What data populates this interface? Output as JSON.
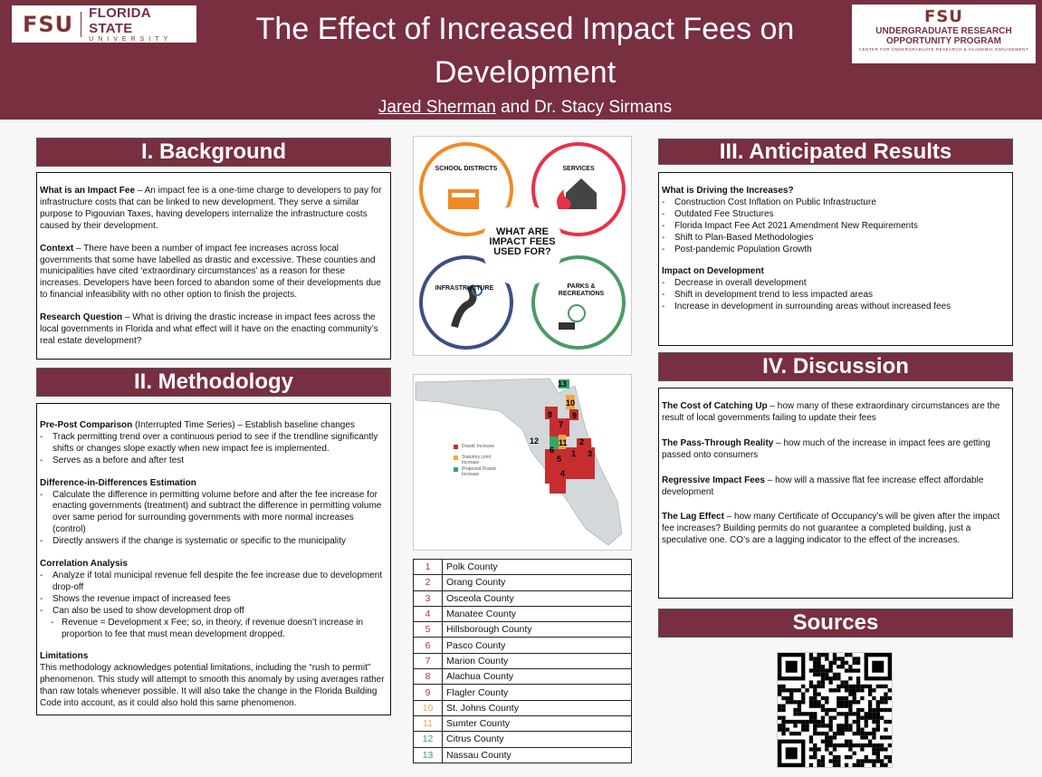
{
  "header": {
    "title": "The Effect of Increased Impact Fees on Development",
    "author1": "Jared Sherman",
    "author_rest": " and Dr. Stacy Sirmans",
    "logo_left": {
      "mark": "FSU",
      "name": "FLORIDA STATE",
      "sub": "UNIVERSITY"
    },
    "logo_right": {
      "mark": "FSU",
      "line1": "UNDERGRADUATE RESEARCH",
      "line2": "OPPORTUNITY PROGRAM",
      "line3": "CENTER FOR UNDERGRADUATE RESEARCH & ACADEMIC ENGAGEMENT"
    }
  },
  "colors": {
    "maroon": "#782f40",
    "drastic": "#c62d2f",
    "statutory": "#f2a543",
    "proposed": "#3aa46a"
  },
  "background": {
    "heading": "I. Background",
    "p1_bold": "What is an Impact Fee",
    "p1": " – An impact fee is a one-time charge to developers to pay for infrastructure costs that can be linked to new development. They serve a similar purpose to Pigouvian Taxes, having developers internalize the infrastructure costs caused by their development.",
    "p2_bold": "Context",
    "p2": " – There have been a number of impact fee increases across local governments that some have labelled as drastic and excessive. These counties and municipalities have cited ‘extraordinary circumstances’ as a reason for these increases. Developers have been forced to abandon some of their developments due to financial infeasibility with no other option to finish the projects.",
    "p3_bold": "Research Question",
    "p3": " – What is driving the drastic increase in impact fees across the local governments in Florida and what effect will it have on the enacting community’s real estate development?"
  },
  "methodology": {
    "heading": "II. Methodology",
    "s1_bold": "Pre-Post Comparison",
    "s1": " (Interrupted Time Series) – Establish baseline changes",
    "s1_items": [
      "Track permitting trend over a continuous period to see if the trendline significantly shifts or changes slope exactly when new impact fee is implemented.",
      "Serves as a before and after test"
    ],
    "s2_title": "Difference-in-Differences Estimation",
    "s2_items": [
      "Calculate the difference in permitting volume before and after the fee increase for enacting governments (treatment) and subtract the difference in permitting volume over same period for surrounding governments with more normal increases (control)",
      "Directly answers if the change is systematic or specific to the municipality"
    ],
    "s3_title": "Correlation Analysis",
    "s3_items": [
      "Analyze if total municipal revenue fell despite the fee increase due to development drop-off",
      "Shows the revenue impact of increased fees",
      "Can also be used to show development drop off"
    ],
    "s3_sub": "Revenue = Development x Fee; so, in theory, if revenue doesn’t increase in proportion to fee that must mean development dropped.",
    "s4_title": "Limitations",
    "s4": "This methodology acknowledges potential limitations, including the “rush to permit” phenomenon. This study will attempt to smooth this anomaly by using averages rather than raw totals whenever possible. It will also take the change in the Florida Building Code into account, as it could also hold this same phenomenon."
  },
  "infographic": {
    "center": "WHAT ARE IMPACT FEES USED FOR?",
    "items": [
      "SCHOOL DISTRICTS",
      "SERVICES",
      "INFRASTRUCTURE",
      "PARKS & RECREATIONS"
    ],
    "school_sign": "SCHOOL"
  },
  "map": {
    "legend": [
      "Drastic Increase",
      "Statutory Limit Increase",
      "Proposed Drastic Increase"
    ]
  },
  "counties": [
    {
      "n": "1",
      "name": "Polk County",
      "cat": "drastic"
    },
    {
      "n": "2",
      "name": "Orang County",
      "cat": "drastic"
    },
    {
      "n": "3",
      "name": "Osceola County",
      "cat": "drastic"
    },
    {
      "n": "4",
      "name": "Manatee County",
      "cat": "drastic"
    },
    {
      "n": "5",
      "name": "Hillsborough County",
      "cat": "drastic"
    },
    {
      "n": "6",
      "name": "Pasco County",
      "cat": "drastic"
    },
    {
      "n": "7",
      "name": "Marion County",
      "cat": "drastic"
    },
    {
      "n": "8",
      "name": "Alachua County",
      "cat": "drastic"
    },
    {
      "n": "9",
      "name": "Flagler County",
      "cat": "drastic"
    },
    {
      "n": "10",
      "name": "St. Johns County",
      "cat": "statutory"
    },
    {
      "n": "11",
      "name": "Sumter County",
      "cat": "statutory"
    },
    {
      "n": "12",
      "name": "Citrus County",
      "cat": "proposed"
    },
    {
      "n": "13",
      "name": "Nassau County",
      "cat": "proposed"
    }
  ],
  "results": {
    "heading": "III. Anticipated Results",
    "t1": "What is Driving the Increases?",
    "l1": [
      "Construction Cost Inflation on Public Infrastructure",
      "Outdated Fee Structures",
      "Florida Impact Fee Act 2021 Amendment New Requirements",
      "Shift to Plan-Based Methodologies",
      "Post-pandemic Population Growth"
    ],
    "t2": "Impact on Development",
    "l2": [
      "Decrease in overall development",
      "Shift in development trend to less impacted areas",
      "Increase in development in surrounding areas without increased fees"
    ]
  },
  "discussion": {
    "heading": "IV. Discussion",
    "items": [
      {
        "b": "The Cost of Catching Up",
        "t": " – how many of these extraordinary circumstances are the result of local governments failing to update their fees"
      },
      {
        "b": "The Pass-Through Reality",
        "t": " – how much of the increase in impact fees are getting passed onto consumers"
      },
      {
        "b": "Regressive Impact Fees",
        "t": " – how will a massive flat fee increase effect affordable development"
      },
      {
        "b": "The Lag Effect",
        "t": " – how many Certificate of Occupancy’s will be given after the impact fee increases? Building permits do not guarantee a completed building, just a speculative one. CO’s are a lagging indicator to the effect of the increases."
      }
    ]
  },
  "sources": {
    "heading": "Sources"
  }
}
